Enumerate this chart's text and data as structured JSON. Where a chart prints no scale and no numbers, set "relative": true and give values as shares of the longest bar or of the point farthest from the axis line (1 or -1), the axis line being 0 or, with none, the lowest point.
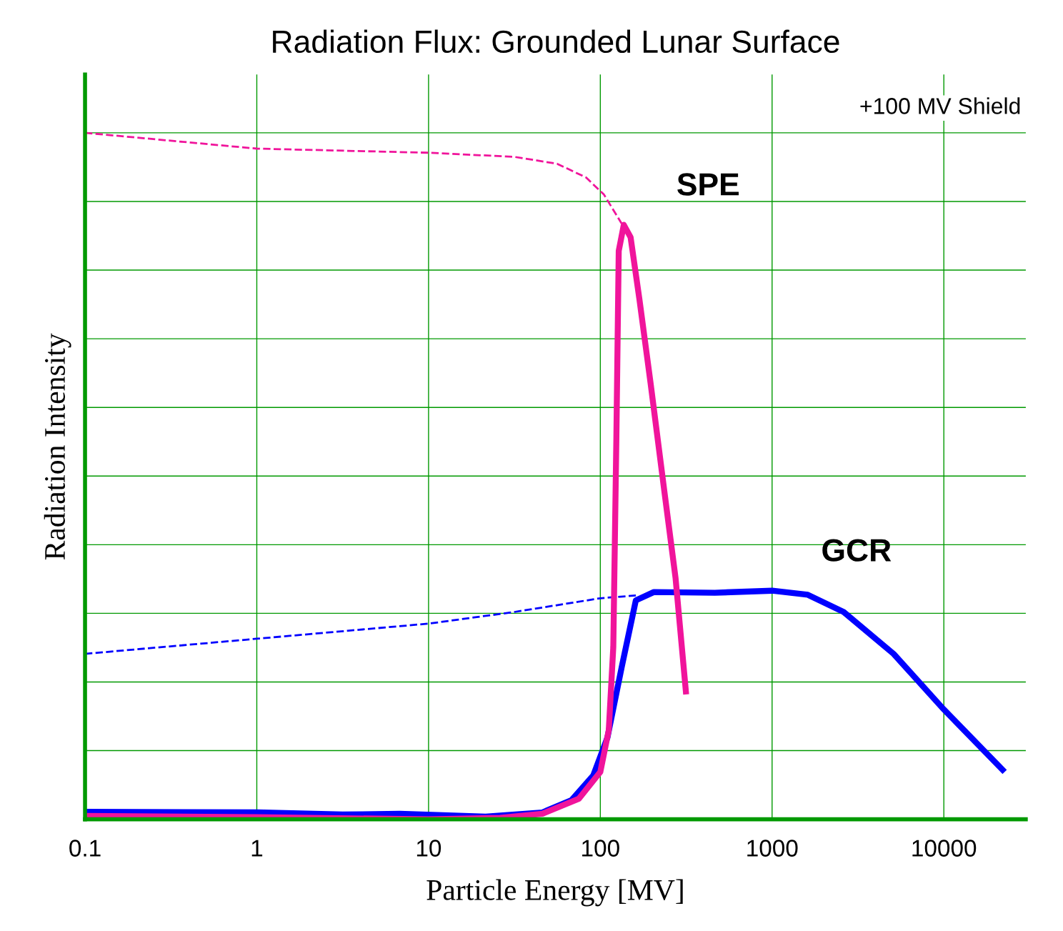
{
  "chart_data": {
    "type": "line",
    "title": "Radiation Flux: Grounded Lunar Surface",
    "xlabel": "Particle Energy [MV]",
    "ylabel": "Radiation Intensity",
    "relative": true,
    "log": "x",
    "grid": true,
    "xlim": [
      0.1,
      30000
    ],
    "xticks": [
      {
        "value": 0.1,
        "label": "0.1"
      },
      1,
      10,
      100,
      1000,
      10000
    ],
    "series": [
      {
        "color": "#f0149b",
        "line_style": "dashed",
        "x": [
          0.1,
          1,
          10,
          31.6,
          56,
          82.5,
          105,
          133
        ],
        "values": [
          1,
          0.977,
          0.971,
          0.965,
          0.955,
          0.935,
          0.91,
          0.868
        ]
      },
      {
        "color": "#0000ff",
        "line_style": "dashed",
        "x": [
          0.1,
          1,
          10,
          31.6,
          100,
          161
        ],
        "values": [
          0.241,
          0.263,
          0.285,
          0.302,
          0.322,
          0.326
        ]
      },
      {
        "name": "GCR",
        "color": "#0000ff",
        "line_style": "solid",
        "x": [
          0.1,
          1,
          3.16,
          6.8,
          21.5,
          46,
          68,
          91,
          110,
          133,
          161,
          205,
          464,
          1000,
          1615,
          2610,
          5100,
          10000,
          22600
        ],
        "values": [
          0.011,
          0.01,
          0.007,
          0.008,
          0.004,
          0.01,
          0.028,
          0.064,
          0.119,
          0.221,
          0.319,
          0.331,
          0.33,
          0.333,
          0.327,
          0.302,
          0.241,
          0.16,
          0.069
        ]
      },
      {
        "name": "SPE",
        "color": "#f0149b",
        "line_style": "solid",
        "x": [
          0.1,
          1,
          10,
          26.1,
          46,
          75,
          100,
          112,
          119,
          124,
          128,
          137,
          150,
          169,
          196,
          237,
          274,
          316
        ],
        "values": [
          0.005,
          0.003,
          0,
          0.002,
          0.008,
          0.03,
          0.069,
          0.13,
          0.251,
          0.555,
          0.828,
          0.866,
          0.848,
          0.757,
          0.636,
          0.474,
          0.352,
          0.182
        ]
      }
    ],
    "annotations": [
      "+100 MV Shield"
    ]
  }
}
